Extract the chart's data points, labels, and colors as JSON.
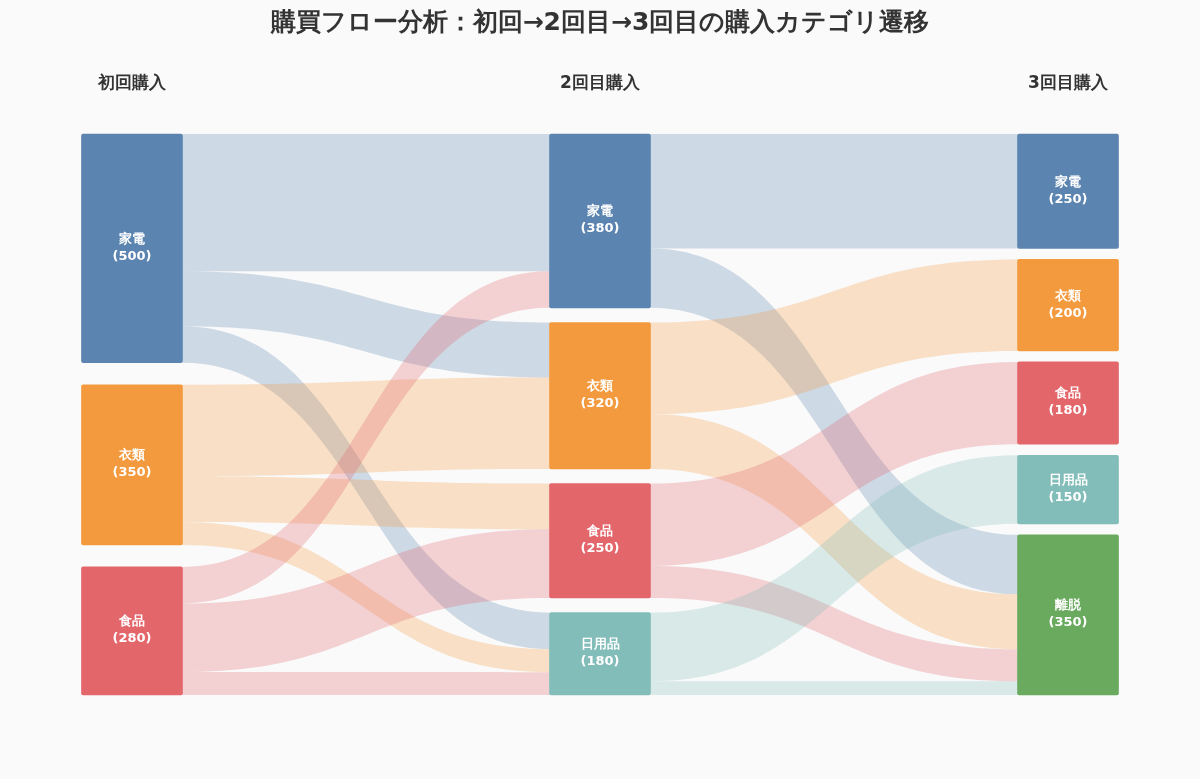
{
  "chart_data": {
    "type": "other",
    "title": "購買フロー分析：初回→2回目→3回目の購入カテゴリ遷移",
    "categories": [
      "初回購入",
      "2回目購入",
      "3回目購入"
    ],
    "series": [
      {
        "name": "家電",
        "color": "#5b84b0",
        "values": [
          500,
          380,
          250
        ],
        "value_labels": [
          "(500)",
          "(380)",
          "(250)"
        ]
      },
      {
        "name": "衣類",
        "color": "#f39a3e",
        "values": [
          350,
          320,
          200
        ],
        "value_labels": [
          "(350)",
          "(320)",
          "(200)"
        ]
      },
      {
        "name": "食品",
        "color": "#e3666b",
        "values": [
          280,
          250,
          180
        ],
        "value_labels": [
          "(280)",
          "(250)",
          "(180)"
        ]
      },
      {
        "name": "日用品",
        "color": "#82bdb9",
        "values": [
          null,
          180,
          150
        ],
        "value_labels": [
          null,
          "(180)",
          "(150)"
        ]
      },
      {
        "name": "離脱",
        "color": "#6aaa5f",
        "values": [
          null,
          null,
          350
        ],
        "value_labels": [
          null,
          null,
          "(350)"
        ]
      }
    ]
  }
}
